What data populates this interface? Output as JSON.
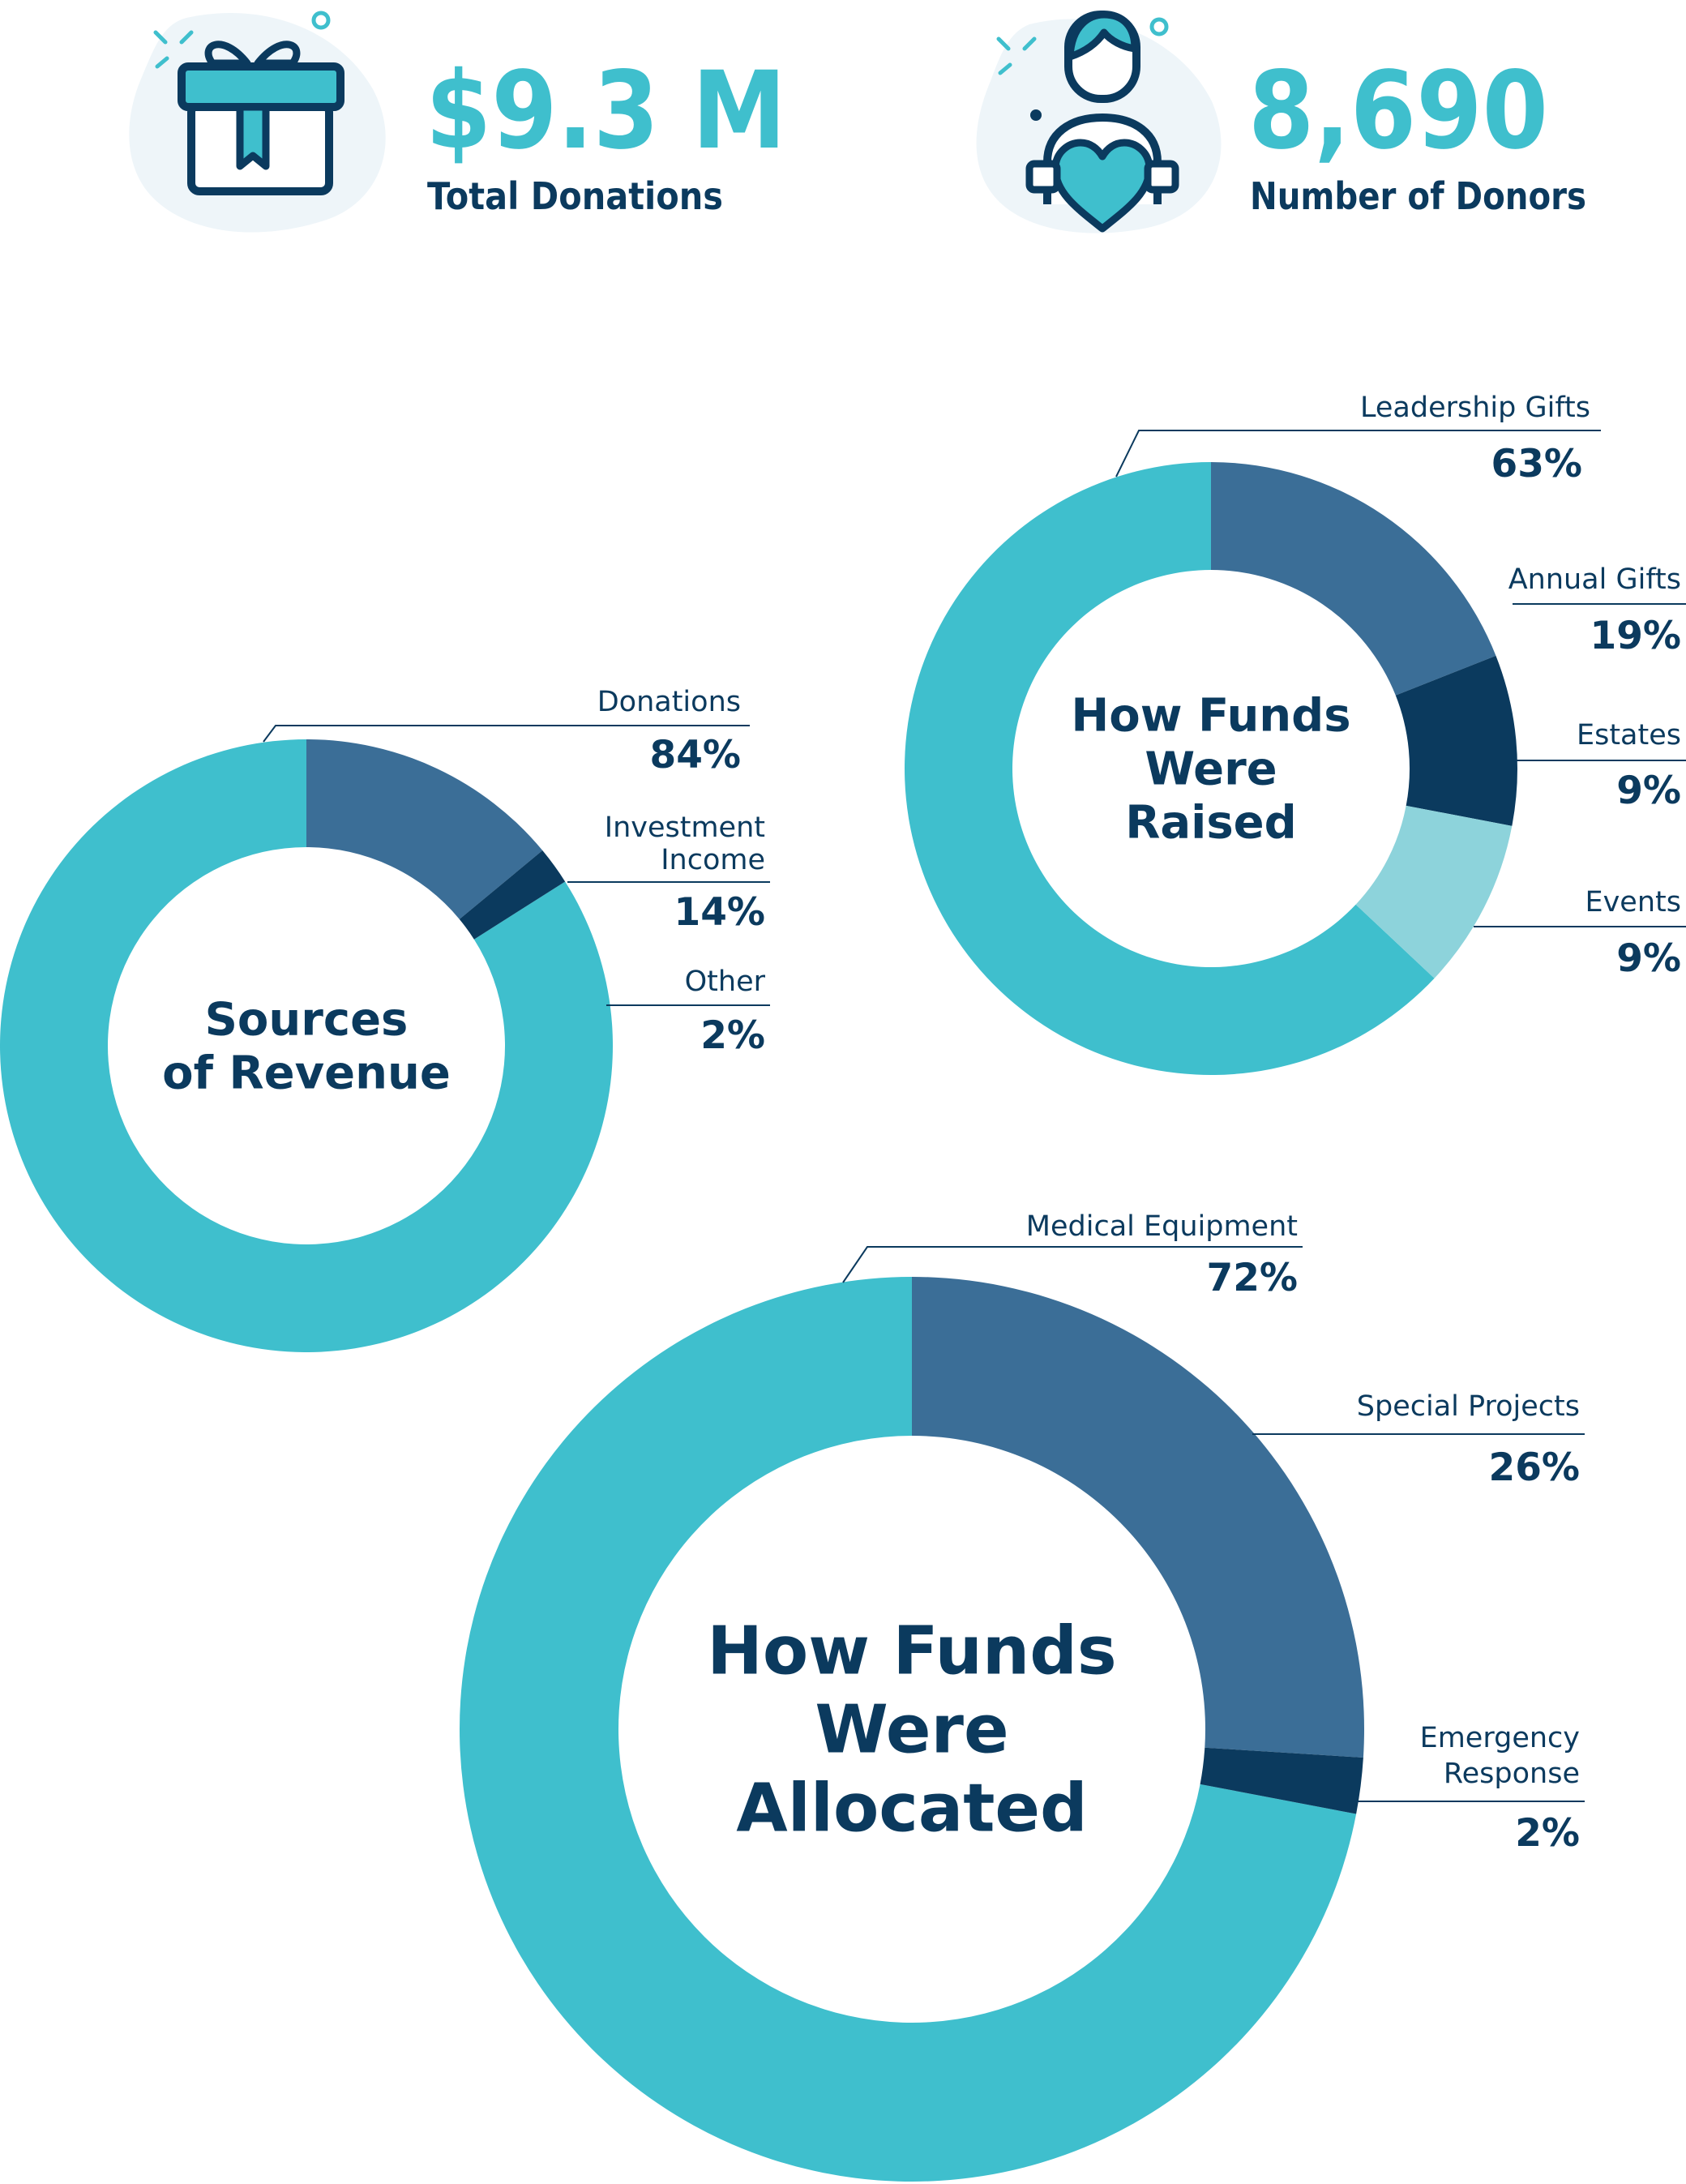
{
  "colors": {
    "teal": "#3fbfcd",
    "steel_blue": "#3b6e97",
    "navy": "#0b3a5e",
    "light_teal": "#8dd3db",
    "bubble": "#eef5f9"
  },
  "stats": [
    {
      "icon": "gift-icon",
      "value": "$9.3 M",
      "label": "Total Donations"
    },
    {
      "icon": "donor-heart-icon",
      "value": "8,690",
      "label": "Number of Donors"
    }
  ],
  "chart_data": [
    {
      "type": "donut",
      "title_lines": [
        "Sources",
        "of Revenue"
      ],
      "slices": [
        {
          "label_lines": [
            "Donations"
          ],
          "pct_text": "84%",
          "value": 84,
          "color": "#3fbfcd"
        },
        {
          "label_lines": [
            "Investment",
            "Income"
          ],
          "pct_text": "14%",
          "value": 14,
          "color": "#3b6e97"
        },
        {
          "label_lines": [
            "Other"
          ],
          "pct_text": "2%",
          "value": 2,
          "color": "#0b3a5e"
        }
      ]
    },
    {
      "type": "donut",
      "title_lines": [
        "How Funds",
        "Were",
        "Raised"
      ],
      "slices": [
        {
          "label_lines": [
            "Leadership Gifts"
          ],
          "pct_text": "63%",
          "value": 63,
          "color": "#3fbfcd"
        },
        {
          "label_lines": [
            "Annual Gifts"
          ],
          "pct_text": "19%",
          "value": 19,
          "color": "#3b6e97"
        },
        {
          "label_lines": [
            "Estates"
          ],
          "pct_text": "9%",
          "value": 9,
          "color": "#0b3a5e"
        },
        {
          "label_lines": [
            "Events"
          ],
          "pct_text": "9%",
          "value": 9,
          "color": "#8dd3db"
        }
      ]
    },
    {
      "type": "donut",
      "title_lines": [
        "How Funds",
        "Were",
        "Allocated"
      ],
      "slices": [
        {
          "label_lines": [
            "Medical Equipment"
          ],
          "pct_text": "72%",
          "value": 72,
          "color": "#3fbfcd"
        },
        {
          "label_lines": [
            "Special Projects"
          ],
          "pct_text": "26%",
          "value": 26,
          "color": "#3b6e97"
        },
        {
          "label_lines": [
            "Emergency",
            "Response"
          ],
          "pct_text": "2%",
          "value": 2,
          "color": "#0b3a5e"
        }
      ]
    }
  ]
}
